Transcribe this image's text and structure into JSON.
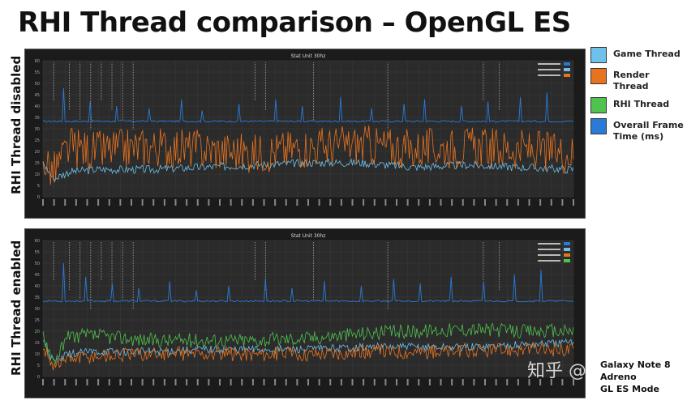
{
  "title": "RHI Thread comparison – OpenGL ES",
  "side_labels": {
    "top": "RHI Thread disabled",
    "bottom": "RHI Thread enabled"
  },
  "legend": [
    {
      "label": "Game Thread",
      "color": "#6ec1ea"
    },
    {
      "label": "Render Thread",
      "color": "#e8731f"
    },
    {
      "label": "RHI Thread",
      "color": "#4fc24f"
    },
    {
      "label": "Overall Frame Time (ms)",
      "color": "#2a7ad8"
    }
  ],
  "device_note": {
    "line1": "Galaxy Note 8",
    "line2": "Adreno",
    "line3": "GL ES Mode"
  },
  "watermark": "知乎 @fengcun",
  "chart_data": [
    {
      "type": "line",
      "subtitle": "Stat Unit 30hz",
      "ylim": [
        0,
        60
      ],
      "y_ticks": [
        0,
        5,
        10,
        15,
        20,
        25,
        30,
        35,
        40,
        45,
        50,
        55,
        60
      ],
      "grid": true,
      "series": [
        {
          "name": "Overall Frame Time",
          "color": "#2a7ad8",
          "baseline": 33.3,
          "spikes": [
            [
              0.04,
              48
            ],
            [
              0.09,
              42
            ],
            [
              0.14,
              40
            ],
            [
              0.2,
              39
            ],
            [
              0.26,
              43
            ],
            [
              0.3,
              38
            ],
            [
              0.37,
              41
            ],
            [
              0.44,
              43
            ],
            [
              0.49,
              40
            ],
            [
              0.56,
              44
            ],
            [
              0.62,
              39
            ],
            [
              0.68,
              41
            ],
            [
              0.72,
              43
            ],
            [
              0.79,
              40
            ],
            [
              0.84,
              42
            ],
            [
              0.9,
              44
            ],
            [
              0.95,
              46
            ]
          ]
        },
        {
          "name": "Game Thread",
          "color": "#6ec1ea",
          "points": [
            [
              0,
              15
            ],
            [
              0.02,
              8
            ],
            [
              0.05,
              11
            ],
            [
              0.1,
              12
            ],
            [
              0.2,
              12
            ],
            [
              0.3,
              13
            ],
            [
              0.4,
              14
            ],
            [
              0.5,
              15
            ],
            [
              0.6,
              15
            ],
            [
              0.7,
              13
            ],
            [
              0.8,
              14
            ],
            [
              0.9,
              13
            ],
            [
              1,
              12
            ]
          ]
        },
        {
          "name": "Render Thread",
          "color": "#e8731f",
          "points": [
            [
              0,
              17
            ],
            [
              0.02,
              11
            ],
            [
              0.05,
              22
            ],
            [
              0.1,
              20
            ],
            [
              0.2,
              22
            ],
            [
              0.3,
              21
            ],
            [
              0.4,
              19
            ],
            [
              0.5,
              22
            ],
            [
              0.6,
              23
            ],
            [
              0.7,
              21
            ],
            [
              0.8,
              22
            ],
            [
              0.9,
              21
            ],
            [
              1,
              19
            ]
          ]
        }
      ]
    },
    {
      "type": "line",
      "subtitle": "Stat Unit 30hz",
      "ylim": [
        0,
        60
      ],
      "y_ticks": [
        0,
        5,
        10,
        15,
        20,
        25,
        30,
        35,
        40,
        45,
        50,
        55,
        60
      ],
      "grid": true,
      "series": [
        {
          "name": "Overall Frame Time",
          "color": "#2a7ad8",
          "baseline": 33.3,
          "spikes": [
            [
              0.04,
              50
            ],
            [
              0.08,
              44
            ],
            [
              0.13,
              41
            ],
            [
              0.18,
              39
            ],
            [
              0.24,
              42
            ],
            [
              0.29,
              38
            ],
            [
              0.35,
              40
            ],
            [
              0.42,
              43
            ],
            [
              0.47,
              39
            ],
            [
              0.53,
              42
            ],
            [
              0.6,
              40
            ],
            [
              0.66,
              43
            ],
            [
              0.71,
              41
            ],
            [
              0.77,
              44
            ],
            [
              0.83,
              42
            ],
            [
              0.89,
              45
            ],
            [
              0.94,
              47
            ]
          ]
        },
        {
          "name": "Game Thread",
          "color": "#6ec1ea",
          "points": [
            [
              0,
              16
            ],
            [
              0.02,
              6
            ],
            [
              0.05,
              10
            ],
            [
              0.1,
              11
            ],
            [
              0.2,
              11
            ],
            [
              0.3,
              12
            ],
            [
              0.4,
              12
            ],
            [
              0.5,
              12
            ],
            [
              0.6,
              13
            ],
            [
              0.7,
              13
            ],
            [
              0.8,
              13
            ],
            [
              0.9,
              14
            ],
            [
              1,
              15
            ]
          ]
        },
        {
          "name": "Render Thread",
          "color": "#e8731f",
          "points": [
            [
              0,
              14
            ],
            [
              0.02,
              5
            ],
            [
              0.05,
              8
            ],
            [
              0.1,
              9
            ],
            [
              0.2,
              10
            ],
            [
              0.3,
              10
            ],
            [
              0.4,
              10
            ],
            [
              0.5,
              10
            ],
            [
              0.6,
              11
            ],
            [
              0.7,
              11
            ],
            [
              0.8,
              11
            ],
            [
              0.9,
              12
            ],
            [
              1,
              12
            ]
          ]
        },
        {
          "name": "RHI Thread",
          "color": "#4fc24f",
          "points": [
            [
              0,
              19
            ],
            [
              0.02,
              7
            ],
            [
              0.05,
              18
            ],
            [
              0.1,
              18
            ],
            [
              0.2,
              16
            ],
            [
              0.3,
              16
            ],
            [
              0.4,
              16
            ],
            [
              0.5,
              17
            ],
            [
              0.6,
              19
            ],
            [
              0.7,
              20
            ],
            [
              0.8,
              21
            ],
            [
              0.9,
              20
            ],
            [
              1,
              20
            ]
          ]
        }
      ]
    }
  ]
}
